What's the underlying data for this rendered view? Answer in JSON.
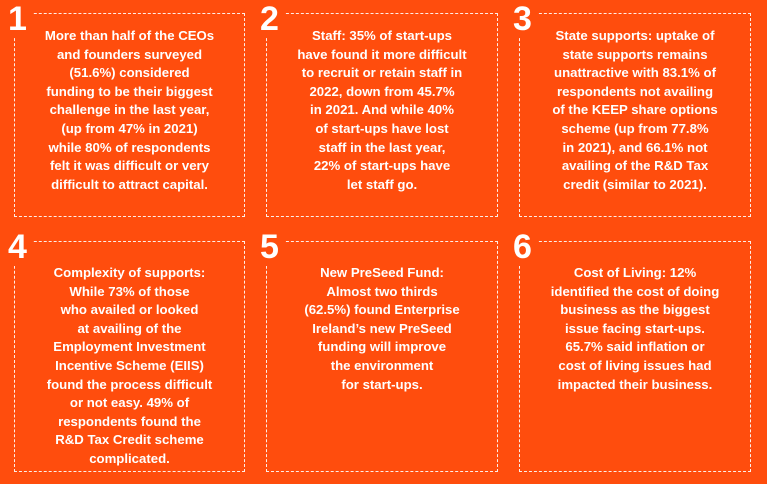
{
  "colors": {
    "background": "#ff4d0d",
    "text": "#ffffff",
    "border": "#ffffff"
  },
  "cards": [
    {
      "number": "1",
      "text": "More than half of the CEOs\nand founders surveyed\n(51.6%) considered\nfunding to be their biggest\nchallenge in the last year,\n(up from 47% in 2021)\nwhile 80% of respondents\nfelt it was difficult or very\ndifficult to attract capital."
    },
    {
      "number": "2",
      "text": "Staff: 35% of start-ups\nhave found it more difficult\nto recruit or retain staff in\n2022, down from 45.7%\nin 2021. And while 40%\nof start-ups have lost\nstaff in the last year,\n22% of start-ups have\nlet staff go."
    },
    {
      "number": "3",
      "text": "State supports: uptake of\nstate supports remains\nunattractive with 83.1% of\nrespondents not availing\nof the KEEP share options\nscheme (up from 77.8%\nin 2021), and 66.1% not\navailing of the R&D Tax\ncredit (similar to 2021)."
    },
    {
      "number": "4",
      "text": "Complexity of supports:\nWhile 73% of those\nwho availed or looked\nat availing of the\nEmployment Investment\nIncentive Scheme (EIIS)\nfound the process difficult\nor not easy. 49% of\nrespondents found the\nR&D Tax Credit scheme\ncomplicated."
    },
    {
      "number": "5",
      "text": "New PreSeed Fund:\nAlmost two thirds\n(62.5%) found Enterprise\nIreland’s new PreSeed\nfunding will improve\nthe environment\nfor start-ups."
    },
    {
      "number": "6",
      "text": "Cost of Living: 12%\nidentified the cost of doing\nbusiness as the biggest\nissue facing start-ups.\n65.7% said inflation or\ncost of living issues had\nimpacted their business."
    }
  ]
}
